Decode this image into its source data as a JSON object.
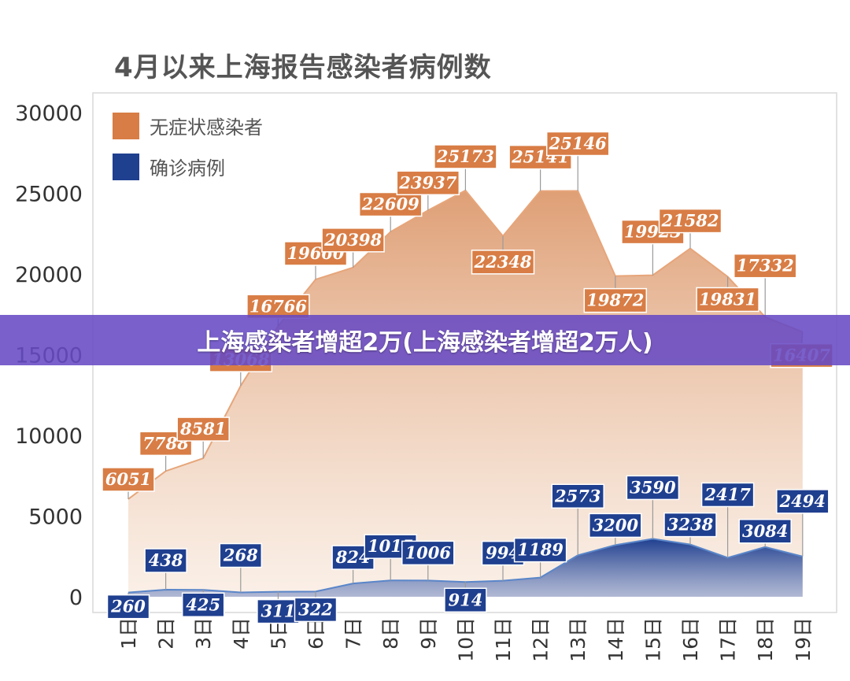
{
  "colors": {
    "asymptomatic": "#d87d45",
    "confirmed": "#1f3f8f",
    "banner": "#664ac4"
  },
  "banner": {
    "text": "上海感染者增超2万(上海感染者增超2万人)"
  },
  "chart_data": {
    "type": "area",
    "title": "4月以来上海报告感染者病例数",
    "categories": [
      "1日",
      "2日",
      "3日",
      "4日",
      "5日",
      "6日",
      "7日",
      "8日",
      "9日",
      "10日",
      "11日",
      "12日",
      "13日",
      "14日",
      "15日",
      "16日",
      "17日",
      "18日",
      "19日"
    ],
    "ylim": [
      0,
      30000
    ],
    "yticks": [
      30000,
      25000,
      20000,
      15000,
      10000,
      5000,
      0
    ],
    "legend_position": "top-left",
    "grid": false,
    "series": [
      {
        "name": "无症状感染者",
        "color": "#d87d45",
        "values": [
          6051,
          7788,
          8581,
          13068,
          16766,
          19660,
          20398,
          22609,
          23937,
          25173,
          22348,
          25141,
          25146,
          19872,
          19923,
          21582,
          19831,
          17332,
          16407
        ]
      },
      {
        "name": "确诊病例",
        "color": "#1f3f8f",
        "values": [
          260,
          438,
          425,
          268,
          311,
          322,
          824,
          1015,
          1006,
          914,
          994,
          1189,
          2573,
          3200,
          3590,
          3238,
          2417,
          3084,
          2494
        ]
      }
    ]
  }
}
